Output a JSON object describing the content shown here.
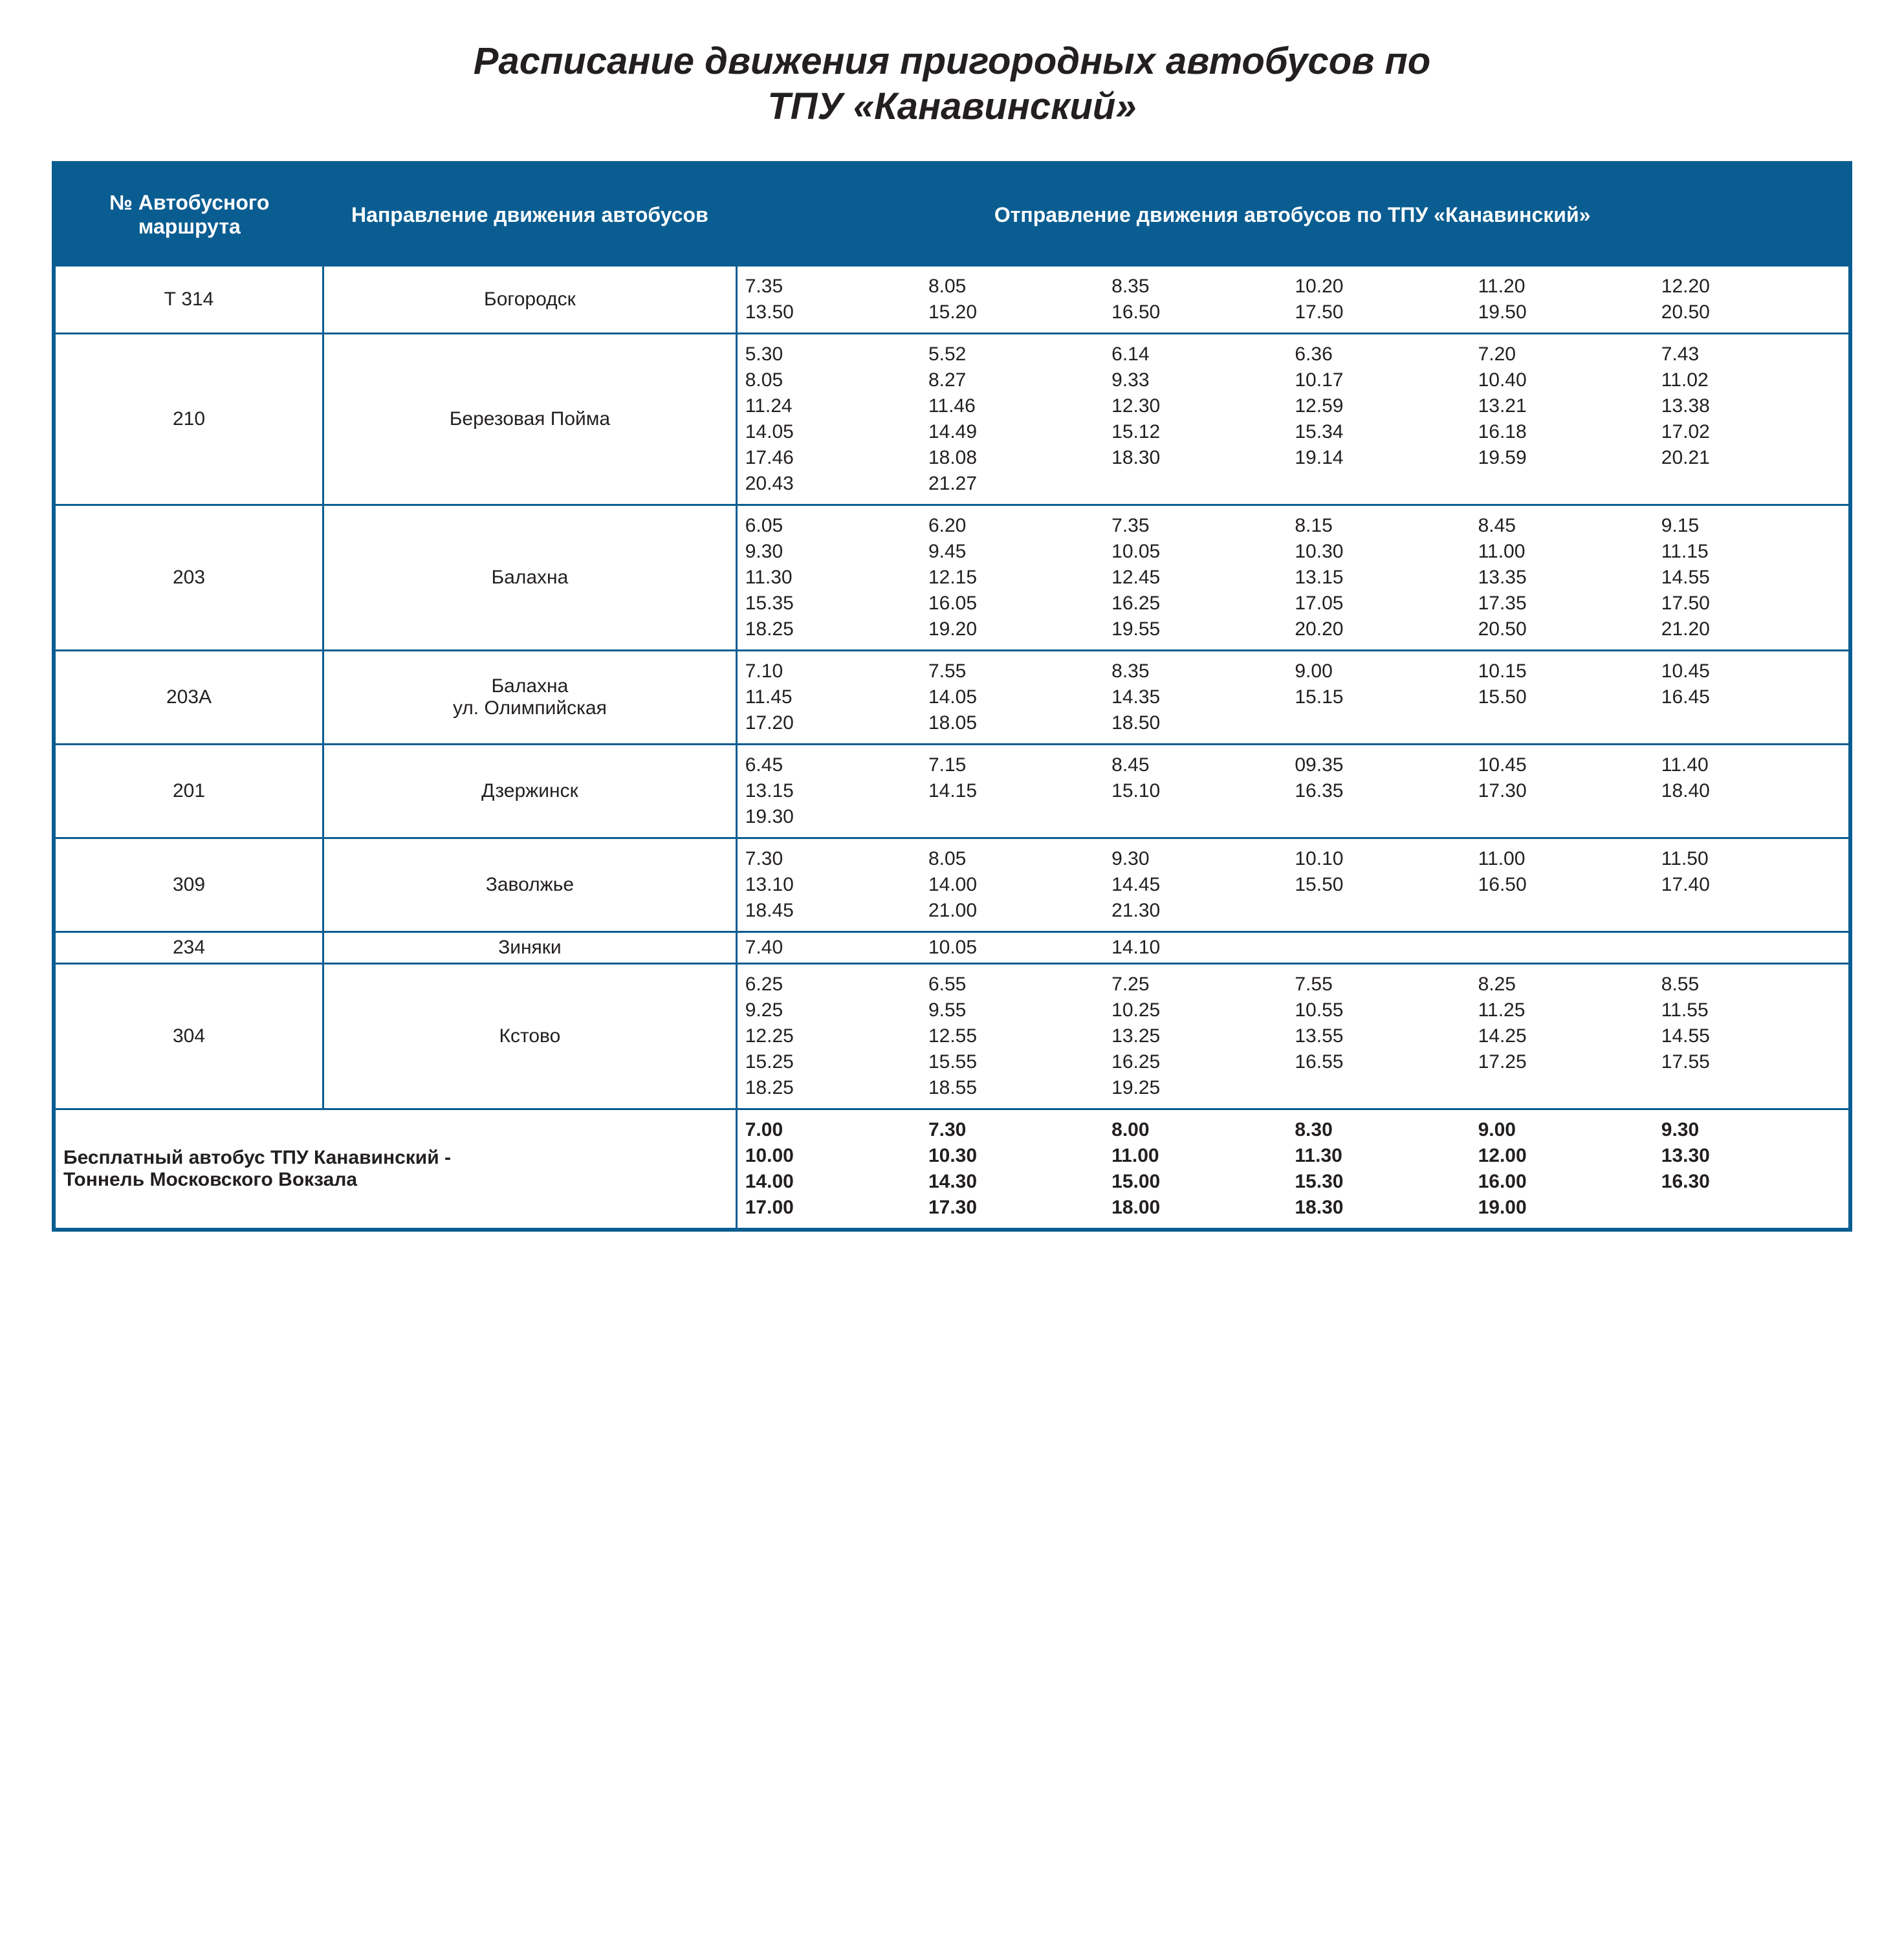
{
  "colors": {
    "header_bg": "#0a5d91",
    "text": "#231f20",
    "bg": "#ffffff"
  },
  "title_line1": "Расписание движения пригородных автобусов по",
  "title_line2": "ТПУ «Канавинский»",
  "headers": {
    "route": "№ Автобусного маршрута",
    "direction": "Направление движения автобусов",
    "departures": "Отправление движения автобусов по ТПУ «Канавинский»"
  },
  "rows": [
    {
      "route": "Т 314",
      "dest": "Богородск",
      "times": [
        "7.35",
        "8.05",
        "8.35",
        "10.20",
        "11.20",
        "12.20",
        "13.50",
        "15.20",
        "16.50",
        "17.50",
        "19.50",
        "20.50"
      ]
    },
    {
      "route": "210",
      "dest": "Березовая Пойма",
      "times": [
        "5.30",
        "5.52",
        "6.14",
        "6.36",
        "7.20",
        "7.43",
        "8.05",
        "8.27",
        "9.33",
        "10.17",
        "10.40",
        "11.02",
        "11.24",
        "11.46",
        "12.30",
        "12.59",
        "13.21",
        "13.38",
        "14.05",
        "14.49",
        "15.12",
        "15.34",
        "16.18",
        "17.02",
        "17.46",
        "18.08",
        "18.30",
        "19.14",
        "19.59",
        "20.21",
        "20.43",
        "21.27"
      ]
    },
    {
      "route": "203",
      "dest": "Балахна",
      "times": [
        "6.05",
        "6.20",
        "7.35",
        "8.15",
        "8.45",
        "9.15",
        "9.30",
        "9.45",
        "10.05",
        "10.30",
        "11.00",
        "11.15",
        "11.30",
        "12.15",
        "12.45",
        "13.15",
        "13.35",
        "14.55",
        "15.35",
        "16.05",
        "16.25",
        "17.05",
        "17.35",
        "17.50",
        "18.25",
        "19.20",
        "19.55",
        "20.20",
        "20.50",
        "21.20"
      ]
    },
    {
      "route": "203А",
      "dest": "Балахна ул. Олимпийская",
      "times": [
        "7.10",
        "7.55",
        "8.35",
        "9.00",
        "10.15",
        "10.45",
        "11.45",
        "14.05",
        "14.35",
        "15.15",
        "15.50",
        "16.45",
        "17.20",
        "18.05",
        "18.50"
      ]
    },
    {
      "route": "201",
      "dest": "Дзержинск",
      "times": [
        "6.45",
        "7.15",
        "8.45",
        "09.35",
        "10.45",
        "11.40",
        "13.15",
        "14.15",
        "15.10",
        "16.35",
        "17.30",
        "18.40",
        "19.30"
      ]
    },
    {
      "route": "309",
      "dest": "Заволжье",
      "times": [
        "7.30",
        "8.05",
        "9.30",
        "10.10",
        "11.00",
        "11.50",
        "13.10",
        "14.00",
        "14.45",
        "15.50",
        "16.50",
        "17.40",
        "18.45",
        "21.00",
        "21.30"
      ]
    },
    {
      "route": "234",
      "dest": "Зиняки",
      "tight": true,
      "times": [
        "7.40",
        "10.05",
        "14.10"
      ]
    },
    {
      "route": "304",
      "dest": "Кстово",
      "times": [
        "6.25",
        "6.55",
        "7.25",
        "7.55",
        "8.25",
        "8.55",
        "9.25",
        "9.55",
        "10.25",
        "10.55",
        "11.25",
        "11.55",
        "12.25",
        "12.55",
        "13.25",
        "13.55",
        "14.25",
        "14.55",
        "15.25",
        "15.55",
        "16.25",
        "16.55",
        "17.25",
        "17.55",
        "18.25",
        "18.55",
        "19.25"
      ]
    }
  ],
  "free_bus": {
    "label_line1": "Бесплатный автобус ТПУ Канавинский -",
    "label_line2": "Тоннель Московского Вокзала",
    "times": [
      "7.00",
      "7.30",
      "8.00",
      "8.30",
      "9.00",
      "9.30",
      "10.00",
      "10.30",
      "11.00",
      "11.30",
      "12.00",
      "13.30",
      "14.00",
      "14.30",
      "15.00",
      "15.30",
      "16.00",
      "16.30",
      "17.00",
      "17.30",
      "18.00",
      "18.30",
      "19.00"
    ]
  }
}
